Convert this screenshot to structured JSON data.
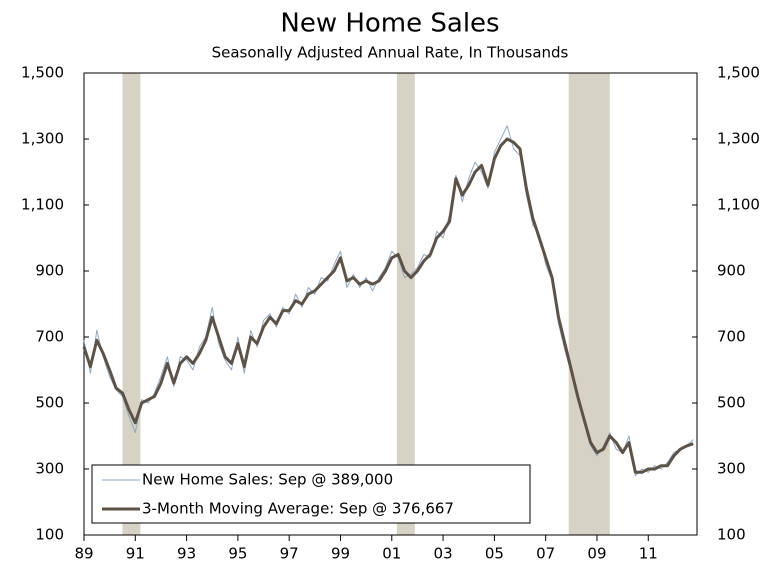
{
  "chart_data": {
    "type": "line",
    "title": "New Home Sales",
    "subtitle": "Seasonally Adjusted Annual Rate, In Thousands",
    "x": [
      1989,
      1989.25,
      1989.5,
      1989.75,
      1990,
      1990.25,
      1990.5,
      1990.75,
      1991,
      1991.25,
      1991.5,
      1991.75,
      1992,
      1992.25,
      1992.5,
      1992.75,
      1993,
      1993.25,
      1993.5,
      1993.75,
      1994,
      1994.25,
      1994.5,
      1994.75,
      1995,
      1995.25,
      1995.5,
      1995.75,
      1996,
      1996.25,
      1996.5,
      1996.75,
      1997,
      1997.25,
      1997.5,
      1997.75,
      1998,
      1998.25,
      1998.5,
      1998.75,
      1999,
      1999.25,
      1999.5,
      1999.75,
      2000,
      2000.25,
      2000.5,
      2000.75,
      2001,
      2001.25,
      2001.5,
      2001.75,
      2002,
      2002.25,
      2002.5,
      2002.75,
      2003,
      2003.25,
      2003.5,
      2003.75,
      2004,
      2004.25,
      2004.5,
      2004.75,
      2005,
      2005.25,
      2005.5,
      2005.75,
      2006,
      2006.25,
      2006.5,
      2006.75,
      2007,
      2007.25,
      2007.5,
      2007.75,
      2008,
      2008.25,
      2008.5,
      2008.75,
      2009,
      2009.25,
      2009.5,
      2009.75,
      2010,
      2010.25,
      2010.5,
      2010.75,
      2011,
      2011.25,
      2011.5,
      2011.75,
      2012,
      2012.25,
      2012.5,
      2012.75
    ],
    "series": [
      {
        "name": "New Home Sales: Sep @ 389,000",
        "color": "#8ea8c6",
        "width": 1,
        "values": [
          690,
          590,
          720,
          640,
          580,
          540,
          520,
          460,
          410,
          510,
          500,
          530,
          580,
          640,
          550,
          640,
          630,
          600,
          670,
          700,
          790,
          680,
          630,
          600,
          700,
          590,
          720,
          670,
          750,
          770,
          730,
          790,
          770,
          830,
          790,
          850,
          830,
          880,
          870,
          920,
          960,
          850,
          890,
          850,
          880,
          840,
          880,
          910,
          960,
          940,
          880,
          890,
          910,
          950,
          940,
          1020,
          1000,
          1070,
          1190,
          1110,
          1180,
          1230,
          1200,
          1150,
          1260,
          1300,
          1340,
          1270,
          1250,
          1130,
          1040,
          1010,
          920,
          870,
          740,
          660,
          590,
          510,
          440,
          370,
          340,
          370,
          410,
          360,
          350,
          400,
          280,
          300,
          290,
          310,
          300,
          320,
          350,
          360,
          370,
          389
        ]
      },
      {
        "name": "3-Month Moving Average: Sep @ 376,667",
        "color": "#5e5246",
        "width": 3,
        "values": [
          670,
          610,
          690,
          650,
          600,
          545,
          530,
          480,
          440,
          500,
          510,
          520,
          560,
          620,
          560,
          620,
          640,
          620,
          650,
          690,
          760,
          700,
          640,
          620,
          680,
          610,
          700,
          680,
          730,
          760,
          740,
          780,
          780,
          810,
          800,
          830,
          840,
          860,
          880,
          900,
          940,
          870,
          880,
          860,
          870,
          860,
          870,
          900,
          940,
          950,
          900,
          880,
          900,
          930,
          950,
          1000,
          1020,
          1050,
          1180,
          1130,
          1160,
          1200,
          1220,
          1160,
          1240,
          1280,
          1300,
          1290,
          1270,
          1150,
          1060,
          1000,
          940,
          880,
          760,
          680,
          600,
          520,
          450,
          380,
          350,
          360,
          400,
          380,
          350,
          380,
          290,
          290,
          300,
          300,
          310,
          310,
          340,
          360,
          370,
          376.667
        ]
      }
    ],
    "recessions": [
      [
        1990.5,
        1991.2
      ],
      [
        2001.2,
        2001.9
      ],
      [
        2007.9,
        2009.5
      ]
    ],
    "recession_color": "#d6d2c4",
    "xlim": [
      1989,
      2012.9
    ],
    "xticks": [
      {
        "value": 1989,
        "label": "89"
      },
      {
        "value": 1991,
        "label": "91"
      },
      {
        "value": 1993,
        "label": "93"
      },
      {
        "value": 1995,
        "label": "95"
      },
      {
        "value": 1997,
        "label": "97"
      },
      {
        "value": 1999,
        "label": "99"
      },
      {
        "value": 2001,
        "label": "01"
      },
      {
        "value": 2003,
        "label": "03"
      },
      {
        "value": 2005,
        "label": "05"
      },
      {
        "value": 2007,
        "label": "07"
      },
      {
        "value": 2009,
        "label": "09"
      },
      {
        "value": 2011,
        "label": "11"
      }
    ],
    "ylim": [
      100,
      1500
    ],
    "yticks": [
      100,
      300,
      500,
      700,
      900,
      {
        "value": 1100,
        "label": "1,100"
      },
      {
        "value": 1300,
        "label": "1,300"
      },
      {
        "value": 1500,
        "label": "1,500"
      }
    ],
    "y2lim": [
      100,
      1500
    ],
    "y2ticks": [
      100,
      300,
      500,
      700,
      900,
      {
        "value": 1100,
        "label": "1,100"
      },
      {
        "value": 1300,
        "label": "1,300"
      },
      {
        "value": 1500,
        "label": "1,500"
      }
    ],
    "legend": "lower left"
  }
}
